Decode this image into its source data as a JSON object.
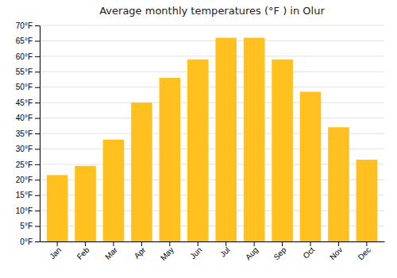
{
  "chart_data": {
    "type": "bar",
    "title": "Average monthly temperatures (°F ) in Olur",
    "categories": [
      "Jan",
      "Feb",
      "Mar",
      "Apr",
      "May",
      "Jun",
      "Jul",
      "Aug",
      "Sep",
      "Oct",
      "Nov",
      "Dec"
    ],
    "values": [
      21.5,
      24.5,
      33.0,
      45.0,
      53.0,
      59.0,
      66.0,
      66.0,
      59.0,
      48.5,
      37.0,
      26.5
    ],
    "color": "#FFC020",
    "ylim": [
      0,
      70
    ],
    "yticks": [
      {
        "value": 0,
        "label": "0°F"
      },
      {
        "value": 5,
        "label": "5°F"
      },
      {
        "value": 10,
        "label": "10°F"
      },
      {
        "value": 15,
        "label": "15°F"
      },
      {
        "value": 20,
        "label": "20°F"
      },
      {
        "value": 25,
        "label": "25°F"
      },
      {
        "value": 30,
        "label": "30°F"
      },
      {
        "value": 35,
        "label": "35°F"
      },
      {
        "value": 40,
        "label": "40°F"
      },
      {
        "value": 45,
        "label": "45°F"
      },
      {
        "value": 50,
        "label": "50°F"
      },
      {
        "value": 55,
        "label": "55°F"
      },
      {
        "value": 60,
        "label": "60°F"
      },
      {
        "value": 65,
        "label": "65°F"
      },
      {
        "value": 70,
        "label": "70°F"
      }
    ],
    "grid": true
  }
}
